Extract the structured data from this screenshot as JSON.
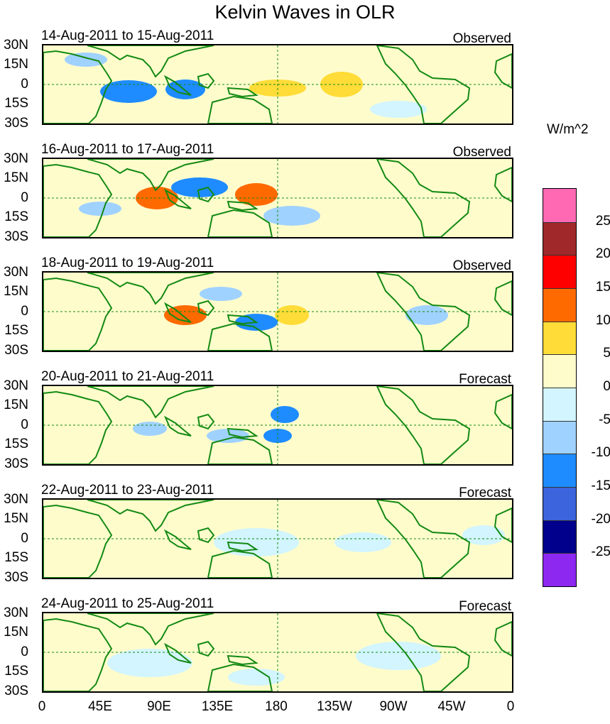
{
  "title": "Kelvin Waves in OLR",
  "units": "W/m^2",
  "latitude_labels": [
    "30N",
    "15N",
    "0",
    "15S",
    "30S"
  ],
  "longitude_labels": [
    "0",
    "45E",
    "90E",
    "135E",
    "180",
    "135W",
    "90W",
    "45W",
    "0"
  ],
  "panels": [
    {
      "date_range": "14-Aug-2011 to 15-Aug-2011",
      "status": "Observed"
    },
    {
      "date_range": "16-Aug-2011 to 17-Aug-2011",
      "status": "Observed"
    },
    {
      "date_range": "18-Aug-2011 to 19-Aug-2011",
      "status": "Observed"
    },
    {
      "date_range": "20-Aug-2011 to 21-Aug-2011",
      "status": "Forecast"
    },
    {
      "date_range": "22-Aug-2011 to 23-Aug-2011",
      "status": "Forecast"
    },
    {
      "date_range": "24-Aug-2011 to 25-Aug-2011",
      "status": "Forecast"
    }
  ],
  "colorbar": {
    "levels": [
      "25",
      "20",
      "15",
      "10",
      "5",
      "0",
      "-5",
      "-10",
      "-15",
      "-20",
      "-25"
    ],
    "colors": [
      "#ff69b4",
      "#a0282a",
      "#ff0000",
      "#ff6a00",
      "#ffdc37",
      "#fffccc",
      "#d2f5ff",
      "#a0d2ff",
      "#1e8cff",
      "#3c64dc",
      "#00008c",
      "#8c28f0"
    ]
  },
  "colors": {
    "coastline": "#138a13",
    "reference_line": "#138a13"
  }
}
